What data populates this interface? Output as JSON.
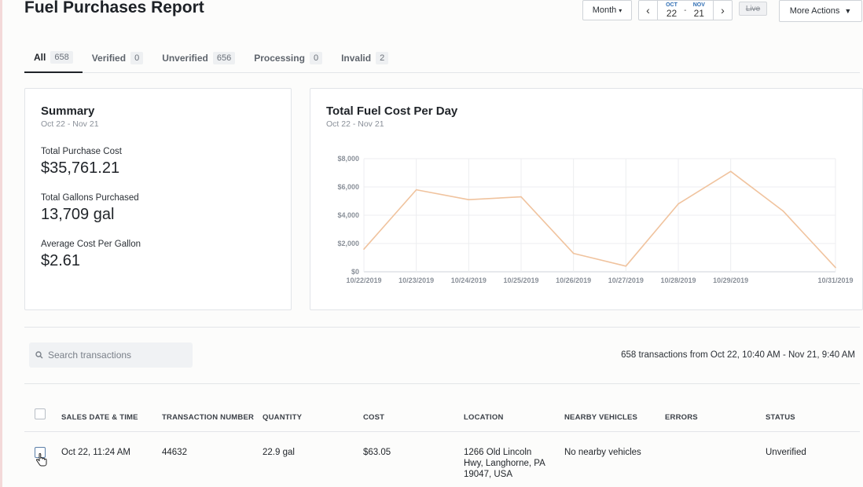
{
  "page": {
    "title": "Fuel Purchases Report"
  },
  "header": {
    "month_label": "Month",
    "start": {
      "month": "OCT",
      "day": "22"
    },
    "end": {
      "month": "NOV",
      "day": "21"
    },
    "dash": "-",
    "live_label": "Live",
    "more_actions_label": "More Actions"
  },
  "tabs": [
    {
      "label": "All",
      "count": "658"
    },
    {
      "label": "Verified",
      "count": "0"
    },
    {
      "label": "Unverified",
      "count": "656"
    },
    {
      "label": "Processing",
      "count": "0"
    },
    {
      "label": "Invalid",
      "count": "2"
    }
  ],
  "summary": {
    "title": "Summary",
    "range": "Oct 22 - Nov 21",
    "metrics": [
      {
        "label": "Total Purchase Cost",
        "value": "$35,761.21"
      },
      {
        "label": "Total Gallons Purchased",
        "value": "13,709 gal"
      },
      {
        "label": "Average Cost Per Gallon",
        "value": "$2.61"
      }
    ]
  },
  "chart_card": {
    "title": "Total Fuel Cost Per Day",
    "range": "Oct 22 - Nov 21"
  },
  "chart_data": {
    "type": "line",
    "title": "Total Fuel Cost Per Day",
    "x_ticks": [
      "10/22/2019",
      "10/23/2019",
      "10/24/2019",
      "10/25/2019",
      "10/26/2019",
      "10/27/2019",
      "10/28/2019",
      "10/29/2019",
      "10/31/2019"
    ],
    "y_ticks": [
      "$0",
      "$2,000",
      "$4,000",
      "$6,000",
      "$8,000"
    ],
    "ylim": [
      0,
      8000
    ],
    "x": [
      "10/22/2019",
      "10/23/2019",
      "10/24/2019",
      "10/25/2019",
      "10/26/2019",
      "10/27/2019",
      "10/28/2019",
      "10/29/2019",
      "10/30/2019",
      "10/31/2019"
    ],
    "values": [
      1600,
      5800,
      5100,
      5300,
      1300,
      400,
      4800,
      7100,
      4300,
      300
    ],
    "line_color": "#f0c39e",
    "grid": true
  },
  "search": {
    "placeholder": "Search transactions"
  },
  "transactions_summary": "658 transactions from Oct 22, 10:40 AM - Nov 21, 9:40 AM",
  "table": {
    "columns": [
      "SALES DATE & TIME",
      "TRANSACTION NUMBER",
      "QUANTITY",
      "COST",
      "LOCATION",
      "NEARBY VEHICLES",
      "ERRORS",
      "STATUS"
    ],
    "rows": [
      {
        "date": "Oct 22, 11:24 AM",
        "number": "44632",
        "quantity": "22.9 gal",
        "cost": "$63.05",
        "location": [
          "1266 Old Lincoln",
          "Hwy, Langhorne, PA",
          "19047, USA"
        ],
        "vehicles": "No nearby vehicles",
        "errors": "",
        "status": "Unverified"
      }
    ]
  }
}
